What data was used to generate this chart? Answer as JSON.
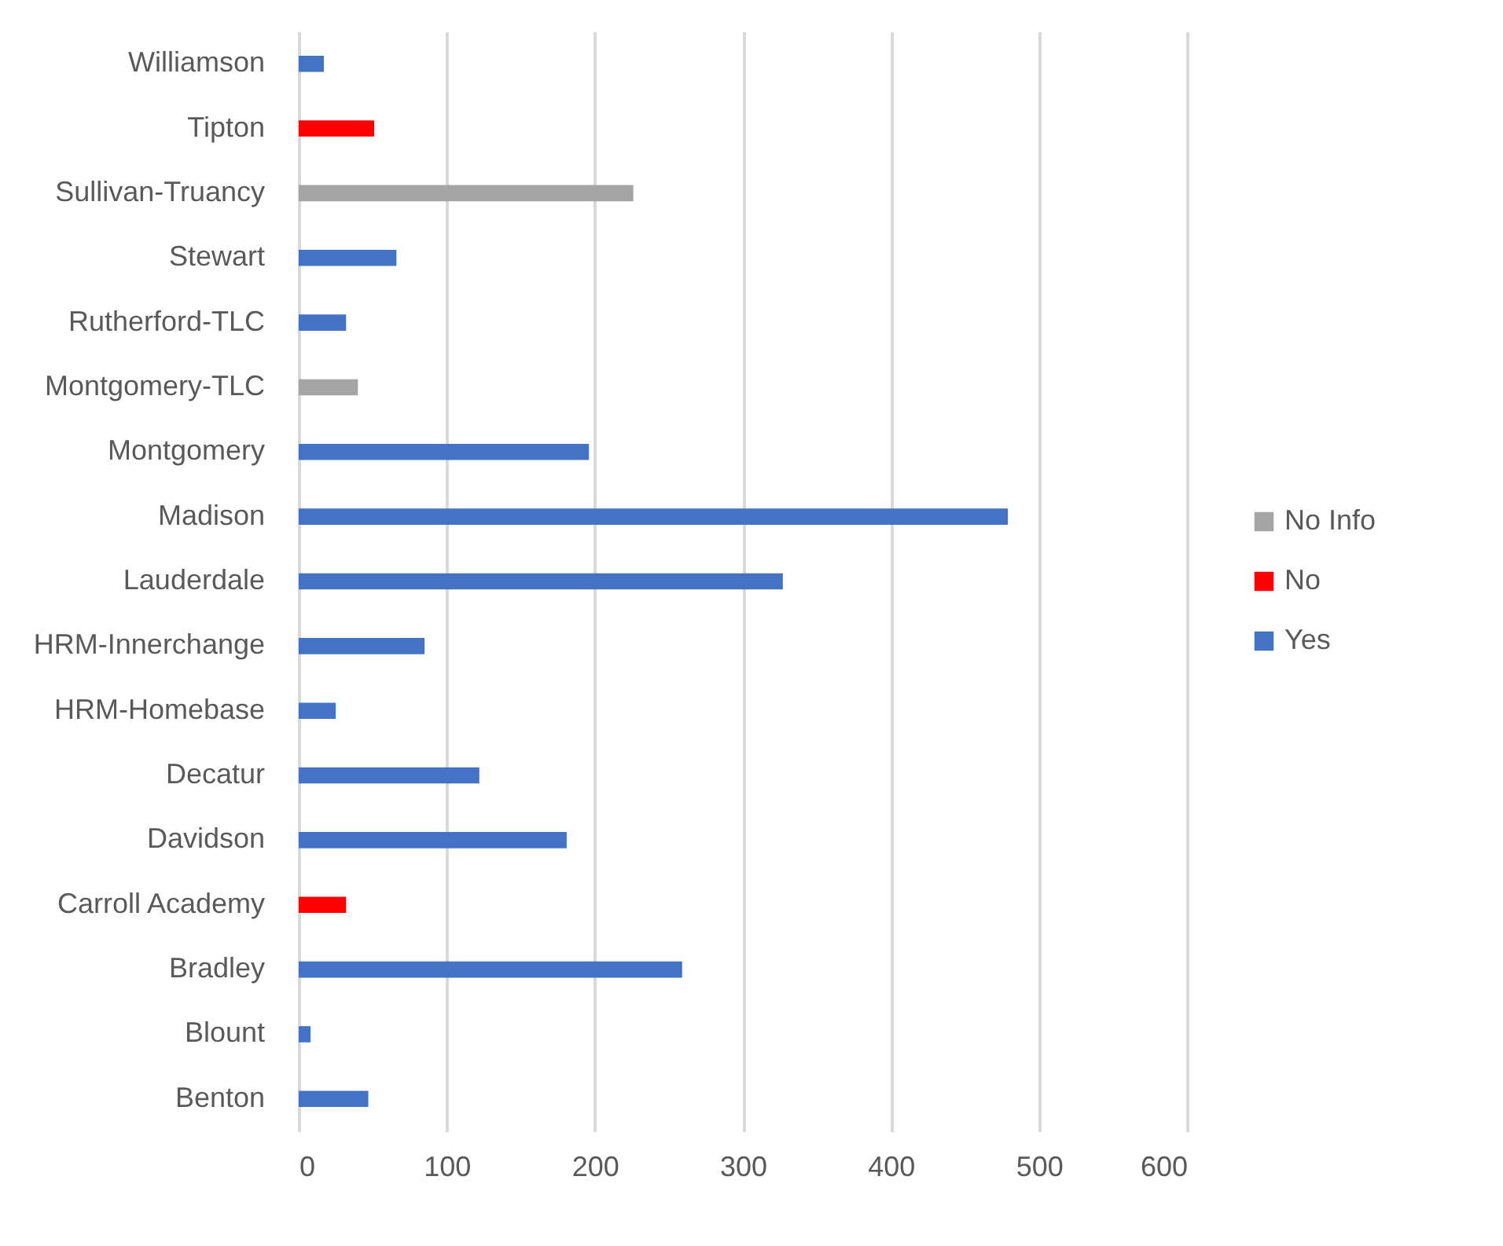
{
  "chart_data": {
    "type": "bar",
    "orientation": "horizontal",
    "categories": [
      "Williamson",
      "Tipton",
      "Sullivan-Truancy",
      "Stewart",
      "Rutherford-TLC",
      "Montgomery-TLC",
      "Montgomery",
      "Madison",
      "Lauderdale",
      "HRM-Innerchange",
      "HRM-Homebase",
      "Decatur",
      "Davidson",
      "Carroll Academy",
      "Bradley",
      "Blount",
      "Benton"
    ],
    "series": [
      {
        "name": "No Info",
        "color": "#a5a5a5",
        "values": [
          null,
          null,
          226,
          null,
          null,
          40,
          null,
          null,
          null,
          null,
          null,
          null,
          null,
          null,
          null,
          null,
          null
        ]
      },
      {
        "name": "No",
        "color": "#ff0000",
        "values": [
          null,
          51,
          null,
          null,
          null,
          null,
          null,
          null,
          null,
          null,
          null,
          null,
          null,
          32,
          null,
          null,
          null
        ]
      },
      {
        "name": "Yes",
        "color": "#4472c4",
        "values": [
          17,
          null,
          null,
          66,
          32,
          null,
          196,
          479,
          327,
          85,
          25,
          122,
          181,
          null,
          259,
          8,
          47
        ]
      }
    ],
    "xlim": [
      0,
      600
    ],
    "xticks": [
      0,
      100,
      200,
      300,
      400,
      500,
      600
    ],
    "grid": "x",
    "legend": "right"
  }
}
